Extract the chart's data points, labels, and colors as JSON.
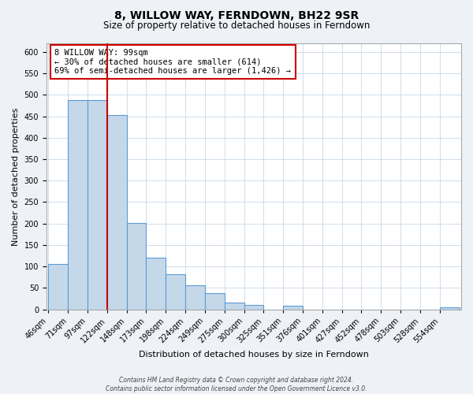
{
  "title": "8, WILLOW WAY, FERNDOWN, BH22 9SR",
  "subtitle": "Size of property relative to detached houses in Ferndown",
  "xlabel": "Distribution of detached houses by size in Ferndown",
  "ylabel": "Number of detached properties",
  "bin_labels": [
    "46sqm",
    "71sqm",
    "97sqm",
    "122sqm",
    "148sqm",
    "173sqm",
    "198sqm",
    "224sqm",
    "249sqm",
    "275sqm",
    "300sqm",
    "325sqm",
    "351sqm",
    "376sqm",
    "401sqm",
    "427sqm",
    "452sqm",
    "478sqm",
    "503sqm",
    "528sqm",
    "554sqm"
  ],
  "bar_heights": [
    105,
    487,
    487,
    452,
    201,
    120,
    82,
    57,
    37,
    16,
    10,
    0,
    9,
    0,
    0,
    0,
    0,
    0,
    0,
    0,
    5
  ],
  "bar_color": "#c5d8ea",
  "bar_edge_color": "#5b9bd5",
  "vline_color": "#cc0000",
  "vline_index": 2,
  "annotation_text": "8 WILLOW WAY: 99sqm\n← 30% of detached houses are smaller (614)\n69% of semi-detached houses are larger (1,426) →",
  "annotation_box_color": "#ffffff",
  "annotation_box_edge": "#cc0000",
  "ylim": [
    0,
    620
  ],
  "yticks": [
    0,
    50,
    100,
    150,
    200,
    250,
    300,
    350,
    400,
    450,
    500,
    550,
    600
  ],
  "footer": "Contains HM Land Registry data © Crown copyright and database right 2024.\nContains public sector information licensed under the Open Government Licence v3.0.",
  "bg_color": "#eef2f7",
  "plot_bg_color": "#ffffff",
  "grid_color": "#c8d8e8",
  "title_fontsize": 10,
  "subtitle_fontsize": 8.5,
  "xlabel_fontsize": 8,
  "ylabel_fontsize": 8,
  "tick_fontsize": 7,
  "annot_fontsize": 7.5,
  "footer_fontsize": 5.5
}
